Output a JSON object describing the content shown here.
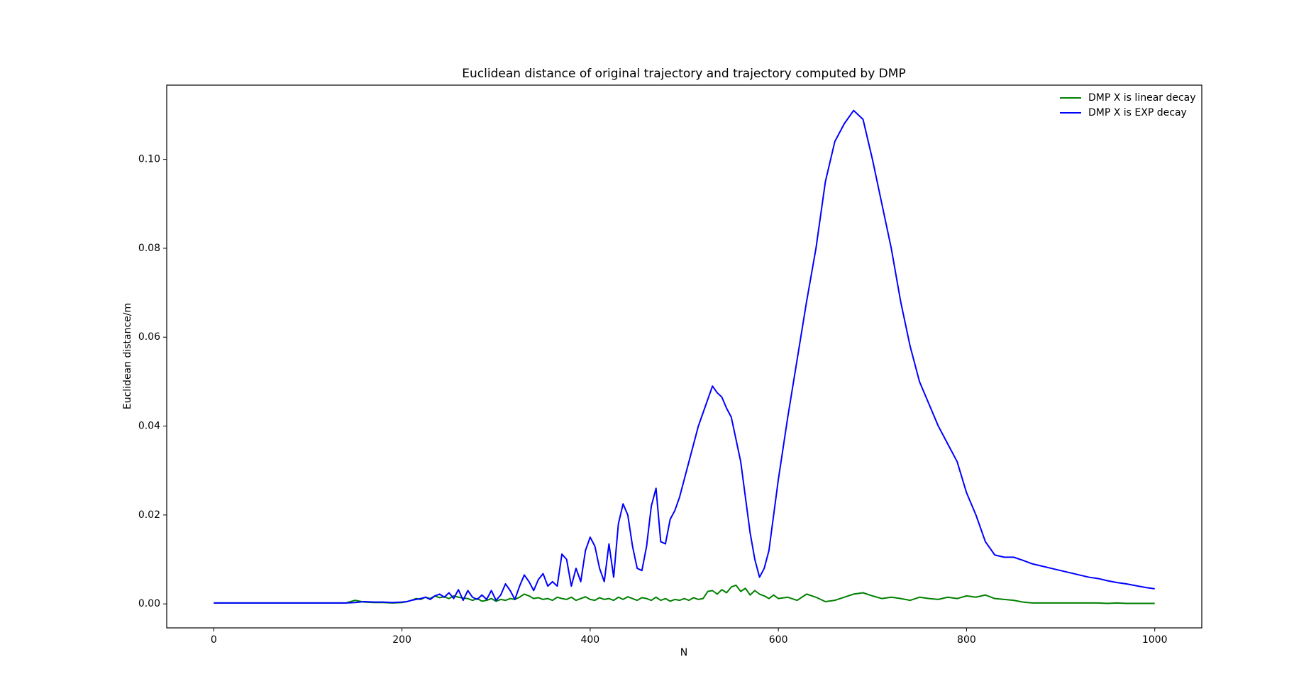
{
  "chart_data": {
    "type": "line",
    "title": "Euclidean distance of original trajectory and trajectory computed by DMP",
    "xlabel": "N",
    "ylabel": "Euclidean distance/m",
    "legend": "upper right",
    "xlim": [
      -50,
      1050
    ],
    "ylim": [
      -0.0054,
      0.1167
    ],
    "xticks": [
      0,
      200,
      400,
      600,
      800,
      1000
    ],
    "yticks": [
      {
        "value": 0,
        "label": "0.00"
      },
      {
        "value": 0.02,
        "label": "0.02"
      },
      {
        "value": 0.04,
        "label": "0.04"
      },
      {
        "value": 0.06,
        "label": "0.06"
      },
      {
        "value": 0.08,
        "label": "0.08"
      },
      {
        "value": 0.1,
        "label": "0.10"
      }
    ],
    "x": [
      0,
      10,
      20,
      30,
      40,
      50,
      60,
      70,
      80,
      90,
      100,
      110,
      120,
      130,
      140,
      150,
      160,
      170,
      180,
      190,
      200,
      205,
      210,
      215,
      220,
      225,
      230,
      235,
      240,
      245,
      250,
      255,
      260,
      265,
      270,
      275,
      280,
      285,
      290,
      295,
      300,
      305,
      310,
      315,
      320,
      325,
      330,
      335,
      340,
      345,
      350,
      355,
      360,
      365,
      370,
      375,
      380,
      385,
      390,
      395,
      400,
      405,
      410,
      415,
      420,
      425,
      430,
      435,
      440,
      445,
      450,
      455,
      460,
      465,
      470,
      475,
      480,
      485,
      490,
      495,
      500,
      505,
      510,
      515,
      520,
      525,
      530,
      535,
      540,
      545,
      550,
      555,
      560,
      565,
      570,
      575,
      580,
      585,
      590,
      595,
      600,
      610,
      620,
      630,
      640,
      650,
      660,
      670,
      680,
      690,
      700,
      710,
      720,
      730,
      740,
      750,
      760,
      770,
      780,
      790,
      800,
      810,
      820,
      830,
      840,
      850,
      860,
      870,
      880,
      890,
      900,
      910,
      920,
      930,
      940,
      950,
      960,
      970,
      980,
      990,
      1000
    ],
    "series": [
      {
        "name": "DMP X is linear decay",
        "color": "#008000",
        "values": [
          0.0002,
          0.0002,
          0.0002,
          0.0002,
          0.0002,
          0.0002,
          0.0002,
          0.0002,
          0.0002,
          0.0002,
          0.0002,
          0.0002,
          0.0002,
          0.0002,
          0.0002,
          0.0008,
          0.0004,
          0.0003,
          0.0003,
          0.0002,
          0.0003,
          0.0005,
          0.0008,
          0.0012,
          0.001,
          0.0015,
          0.0012,
          0.0018,
          0.0014,
          0.0016,
          0.0012,
          0.0018,
          0.0015,
          0.0013,
          0.0012,
          0.0008,
          0.0012,
          0.0006,
          0.0008,
          0.0012,
          0.0006,
          0.001,
          0.0008,
          0.0012,
          0.001,
          0.0015,
          0.0022,
          0.0018,
          0.0012,
          0.0014,
          0.001,
          0.0012,
          0.0008,
          0.0015,
          0.0012,
          0.001,
          0.0015,
          0.0008,
          0.0012,
          0.0016,
          0.001,
          0.0008,
          0.0014,
          0.001,
          0.0012,
          0.0008,
          0.0015,
          0.001,
          0.0016,
          0.0012,
          0.0008,
          0.0014,
          0.0012,
          0.0008,
          0.0015,
          0.0008,
          0.0012,
          0.0006,
          0.001,
          0.0008,
          0.0012,
          0.0008,
          0.0014,
          0.001,
          0.0012,
          0.0028,
          0.003,
          0.0022,
          0.0032,
          0.0025,
          0.0038,
          0.0042,
          0.0028,
          0.0035,
          0.002,
          0.003,
          0.0022,
          0.0018,
          0.0012,
          0.002,
          0.0012,
          0.0015,
          0.0008,
          0.0022,
          0.0015,
          0.0005,
          0.0008,
          0.0015,
          0.0022,
          0.0025,
          0.0018,
          0.0012,
          0.0015,
          0.0012,
          0.0008,
          0.0015,
          0.0012,
          0.001,
          0.0015,
          0.0012,
          0.0018,
          0.0015,
          0.002,
          0.0012,
          0.001,
          0.0008,
          0.0004,
          0.0002,
          0.0002,
          0.0002,
          0.0002,
          0.0002,
          0.0002,
          0.0002,
          0.0002,
          0.0001,
          0.0002,
          0.0001,
          0.0001,
          0.0001,
          0.0001
        ]
      },
      {
        "name": "DMP X is EXP decay",
        "color": "#0000ff",
        "values": [
          0.0002,
          0.0002,
          0.0002,
          0.0002,
          0.0002,
          0.0002,
          0.0002,
          0.0002,
          0.0002,
          0.0002,
          0.0002,
          0.0002,
          0.0002,
          0.0002,
          0.0002,
          0.0003,
          0.0005,
          0.0004,
          0.0004,
          0.0003,
          0.0004,
          0.0005,
          0.0008,
          0.001,
          0.0012,
          0.0015,
          0.001,
          0.0018,
          0.0022,
          0.0015,
          0.0025,
          0.0012,
          0.0032,
          0.0008,
          0.003,
          0.0015,
          0.001,
          0.002,
          0.001,
          0.003,
          0.0008,
          0.002,
          0.0045,
          0.003,
          0.001,
          0.004,
          0.0065,
          0.005,
          0.003,
          0.0055,
          0.0068,
          0.004,
          0.005,
          0.004,
          0.0112,
          0.01,
          0.004,
          0.008,
          0.005,
          0.012,
          0.015,
          0.013,
          0.008,
          0.005,
          0.0135,
          0.006,
          0.018,
          0.0225,
          0.02,
          0.013,
          0.008,
          0.0075,
          0.013,
          0.022,
          0.026,
          0.014,
          0.0135,
          0.019,
          0.021,
          0.024,
          0.028,
          0.032,
          0.036,
          0.04,
          0.043,
          0.046,
          0.049,
          0.0475,
          0.0465,
          0.044,
          0.042,
          0.037,
          0.032,
          0.024,
          0.016,
          0.01,
          0.006,
          0.008,
          0.012,
          0.02,
          0.028,
          0.042,
          0.055,
          0.068,
          0.08,
          0.095,
          0.104,
          0.108,
          0.111,
          0.109,
          0.1,
          0.09,
          0.08,
          0.068,
          0.058,
          0.05,
          0.045,
          0.04,
          0.036,
          0.032,
          0.025,
          0.02,
          0.014,
          0.011,
          0.0105,
          0.0105,
          0.0098,
          0.009,
          0.0085,
          0.008,
          0.0075,
          0.007,
          0.0065,
          0.006,
          0.0057,
          0.0052,
          0.0048,
          0.0045,
          0.0041,
          0.0037,
          0.0034
        ]
      }
    ]
  }
}
